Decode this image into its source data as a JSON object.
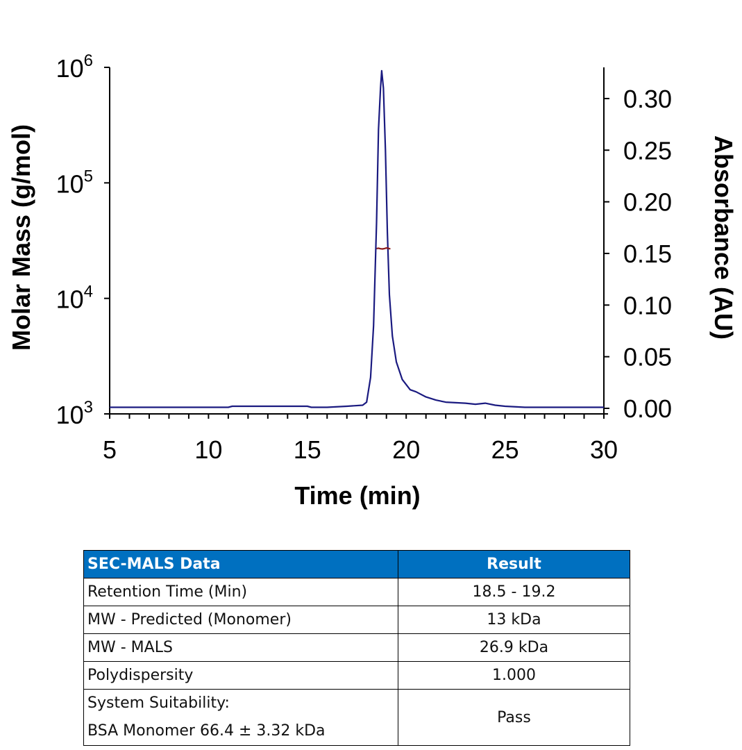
{
  "chart_data": {
    "type": "line",
    "xlabel": "Time (min)",
    "ylabel_left": "Molar Mass (g/mol)",
    "ylabel_right": "Absorbance (AU)",
    "xlim": [
      5,
      30
    ],
    "x_ticks": [
      "5",
      "10",
      "15",
      "20",
      "25",
      "30"
    ],
    "ylim_left_log10": [
      3,
      6
    ],
    "y_ticks_left": [
      {
        "base": "10",
        "exp": "3"
      },
      {
        "base": "10",
        "exp": "4"
      },
      {
        "base": "10",
        "exp": "5"
      },
      {
        "base": "10",
        "exp": "6"
      }
    ],
    "ylim_right": [
      0,
      0.33
    ],
    "y_ticks_right": [
      "0.00",
      "0.05",
      "0.10",
      "0.15",
      "0.20",
      "0.25",
      "0.30"
    ],
    "grid": false,
    "series": [
      {
        "name": "Absorbance",
        "axis": "right",
        "color": "#1a1a80",
        "x": [
          5,
          11,
          11.2,
          15,
          15.2,
          16,
          17,
          17.8,
          18,
          18.2,
          18.35,
          18.5,
          18.6,
          18.7,
          18.76,
          18.85,
          18.95,
          19.05,
          19.15,
          19.3,
          19.5,
          19.8,
          20.2,
          20.5,
          21,
          21.5,
          22,
          23,
          23.5,
          24,
          24.5,
          25,
          26,
          30
        ],
        "y": [
          0.001,
          0.001,
          0.002,
          0.002,
          0.001,
          0.001,
          0.002,
          0.003,
          0.006,
          0.03,
          0.08,
          0.18,
          0.27,
          0.31,
          0.327,
          0.31,
          0.25,
          0.17,
          0.11,
          0.07,
          0.045,
          0.028,
          0.018,
          0.016,
          0.011,
          0.008,
          0.006,
          0.005,
          0.004,
          0.005,
          0.003,
          0.002,
          0.001,
          0.001
        ]
      },
      {
        "name": "Molar Mass",
        "axis": "left",
        "color": "#8b1a1a",
        "x": [
          18.5,
          18.6,
          18.7,
          18.8,
          18.9,
          19.0,
          19.1,
          19.2
        ],
        "y": [
          27000,
          27200,
          26900,
          26800,
          27000,
          27300,
          27100,
          26800
        ]
      }
    ]
  },
  "table": {
    "headers": [
      "SEC-MALS Data",
      "Result"
    ],
    "rows": [
      {
        "label": "Retention Time (Min)",
        "value": "18.5 - 19.2"
      },
      {
        "label": "MW - Predicted (Monomer)",
        "value": "13 kDa"
      },
      {
        "label": "MW - MALS",
        "value": "26.9 kDa"
      },
      {
        "label": "Polydispersity",
        "value": "1.000"
      }
    ],
    "last_row": {
      "label_line1": "System Suitability:",
      "label_line2": "BSA Monomer 66.4 ± 3.32 kDa",
      "value": "Pass"
    }
  },
  "colors": {
    "header_bg": "#0070c0",
    "absorbance": "#1a1a80",
    "molar_mass": "#8b1a1a"
  }
}
